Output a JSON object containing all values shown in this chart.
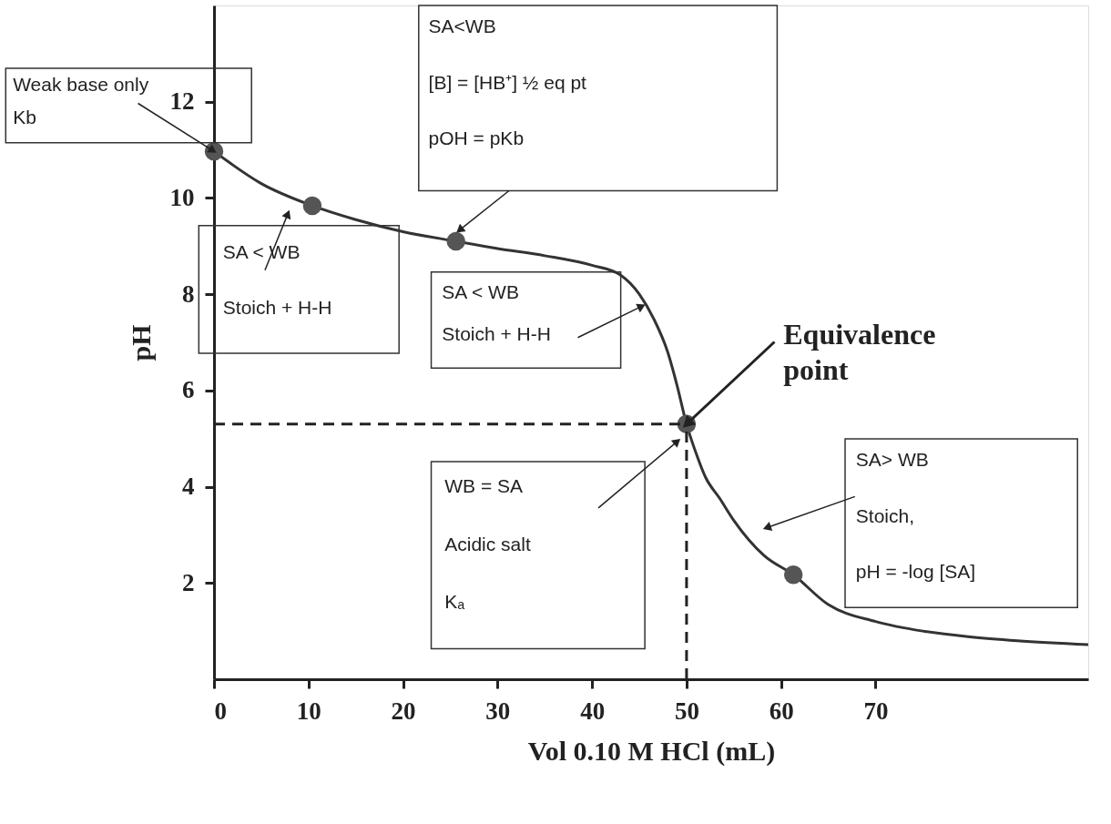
{
  "chart_data": {
    "type": "line",
    "xlabel": "Vol 0.10 M HCl (mL)",
    "ylabel": "pH",
    "xlim": [
      0,
      92.5
    ],
    "ylim": [
      0,
      14
    ],
    "xticks": [
      0,
      10,
      20,
      30,
      40,
      50,
      60,
      70
    ],
    "yticks": [
      2,
      4,
      6,
      8,
      10,
      12
    ],
    "grid": false,
    "series": [
      {
        "color": "#333333",
        "line_style": "solid",
        "marker": "none",
        "x": [
          0,
          5,
          10.4,
          15,
          20,
          25.6,
          30,
          35,
          40,
          43,
          45,
          46.5,
          48,
          49,
          50,
          51,
          52,
          53.5,
          55,
          58.2,
          61.3,
          65,
          70,
          75,
          80,
          85,
          92.5
        ],
        "values": [
          10.97,
          10.3,
          9.84,
          9.55,
          9.3,
          9.1,
          8.95,
          8.8,
          8.6,
          8.4,
          8.0,
          7.5,
          6.8,
          6.1,
          5.3,
          4.7,
          4.2,
          3.76,
          3.3,
          2.57,
          2.17,
          1.55,
          1.2,
          1.0,
          0.88,
          0.8,
          0.72
        ]
      },
      {
        "type": "scatter",
        "marker": "circle",
        "color": "#555555",
        "x": [
          0,
          10.4,
          25.6,
          50,
          61.3
        ],
        "values": [
          10.97,
          9.84,
          9.1,
          5.3,
          2.17
        ]
      }
    ],
    "ref_lines": [
      {
        "axis": "y",
        "value": 5.3,
        "line_style": "dashed",
        "color": "#222222"
      },
      {
        "axis": "x",
        "value": 50,
        "line_style": "dashed",
        "color": "#222222"
      }
    ],
    "annotations": [
      {
        "text": "Weak base only\nKb",
        "x": 0,
        "y": 10.97
      },
      "SA<WB\n[B] = [HB⁺]   ½ eq pt\npOH = pKb",
      "SA < WB\nStoich + H-H",
      "SA < WB\nStoich + H-H",
      "WB = SA\nAcidic salt\nKₐ",
      "SA> WB\nStoich,\npH = -log [SA]",
      {
        "text": "Equivalence\npoint",
        "x": 50,
        "y": 5.3
      }
    ]
  }
}
